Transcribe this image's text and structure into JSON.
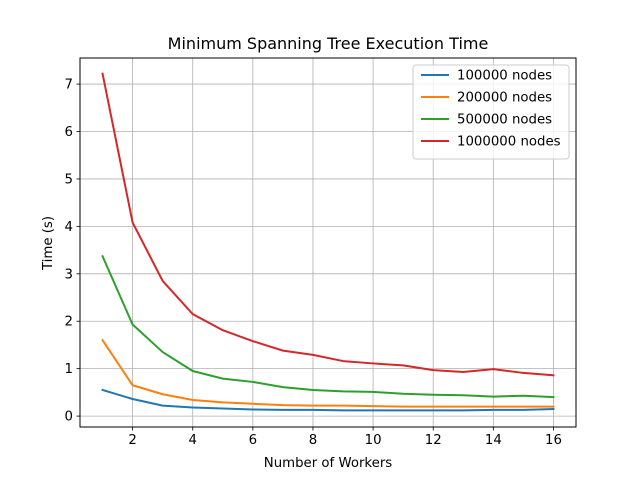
{
  "chart_data": {
    "type": "line",
    "title": "Minimum Spanning Tree Execution Time",
    "xlabel": "Number of Workers",
    "ylabel": "Time (s)",
    "x": [
      1,
      2,
      3,
      4,
      5,
      6,
      7,
      8,
      9,
      10,
      11,
      12,
      13,
      14,
      15,
      16
    ],
    "xlim": [
      0.25,
      16.75
    ],
    "ylim": [
      -0.23,
      7.55
    ],
    "xticks": [
      2,
      4,
      6,
      8,
      10,
      12,
      14,
      16
    ],
    "yticks": [
      0,
      1,
      2,
      3,
      4,
      5,
      6,
      7
    ],
    "grid": true,
    "legend_position": "top-right",
    "series": [
      {
        "name": "100000 nodes",
        "color": "#1f77b4",
        "values": [
          0.55,
          0.36,
          0.22,
          0.18,
          0.16,
          0.14,
          0.13,
          0.13,
          0.12,
          0.12,
          0.12,
          0.12,
          0.12,
          0.13,
          0.13,
          0.15
        ]
      },
      {
        "name": "200000 nodes",
        "color": "#ff7f0e",
        "values": [
          1.6,
          0.65,
          0.46,
          0.34,
          0.29,
          0.26,
          0.23,
          0.22,
          0.22,
          0.21,
          0.2,
          0.2,
          0.2,
          0.2,
          0.2,
          0.2
        ]
      },
      {
        "name": "500000 nodes",
        "color": "#2ca02c",
        "values": [
          3.37,
          1.93,
          1.35,
          0.95,
          0.79,
          0.72,
          0.61,
          0.55,
          0.52,
          0.51,
          0.47,
          0.45,
          0.44,
          0.41,
          0.43,
          0.4
        ]
      },
      {
        "name": "1000000 nodes",
        "color": "#d62728",
        "values": [
          7.22,
          4.08,
          2.85,
          2.15,
          1.81,
          1.58,
          1.38,
          1.29,
          1.16,
          1.11,
          1.07,
          0.97,
          0.93,
          0.99,
          0.91,
          0.86
        ]
      }
    ]
  }
}
